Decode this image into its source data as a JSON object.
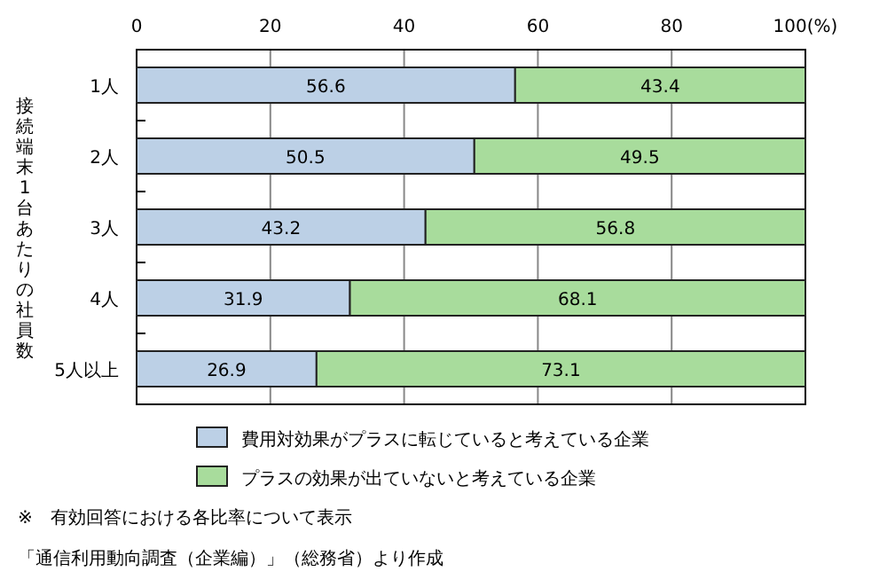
{
  "chart_data": {
    "type": "bar",
    "orientation": "horizontal",
    "stacked": true,
    "ylabel": "接続端末1台あたりの社員数",
    "categories": [
      "1人",
      "2人",
      "3人",
      "4人",
      "5人以上"
    ],
    "series": [
      {
        "name": "費用対効果がプラスに転じていると考えている企業",
        "color": "#bcd0e6",
        "values": [
          56.6,
          50.5,
          43.2,
          31.9,
          26.9
        ]
      },
      {
        "name": "プラスの効果が出ていないと考えている企業",
        "color": "#a8dc9c",
        "values": [
          43.4,
          49.5,
          56.8,
          68.1,
          73.1
        ]
      }
    ],
    "xlim": [
      0,
      100
    ],
    "xticks": [
      0,
      20,
      40,
      60,
      80,
      {
        "value": 100,
        "label": "100(%)"
      }
    ],
    "grid": "x",
    "data_labels": true,
    "legend": "bottom",
    "annotations": [
      "※　有効回答における各比率について表示",
      "「通信利用動向調査（企業編）」（総務省）より作成"
    ]
  }
}
